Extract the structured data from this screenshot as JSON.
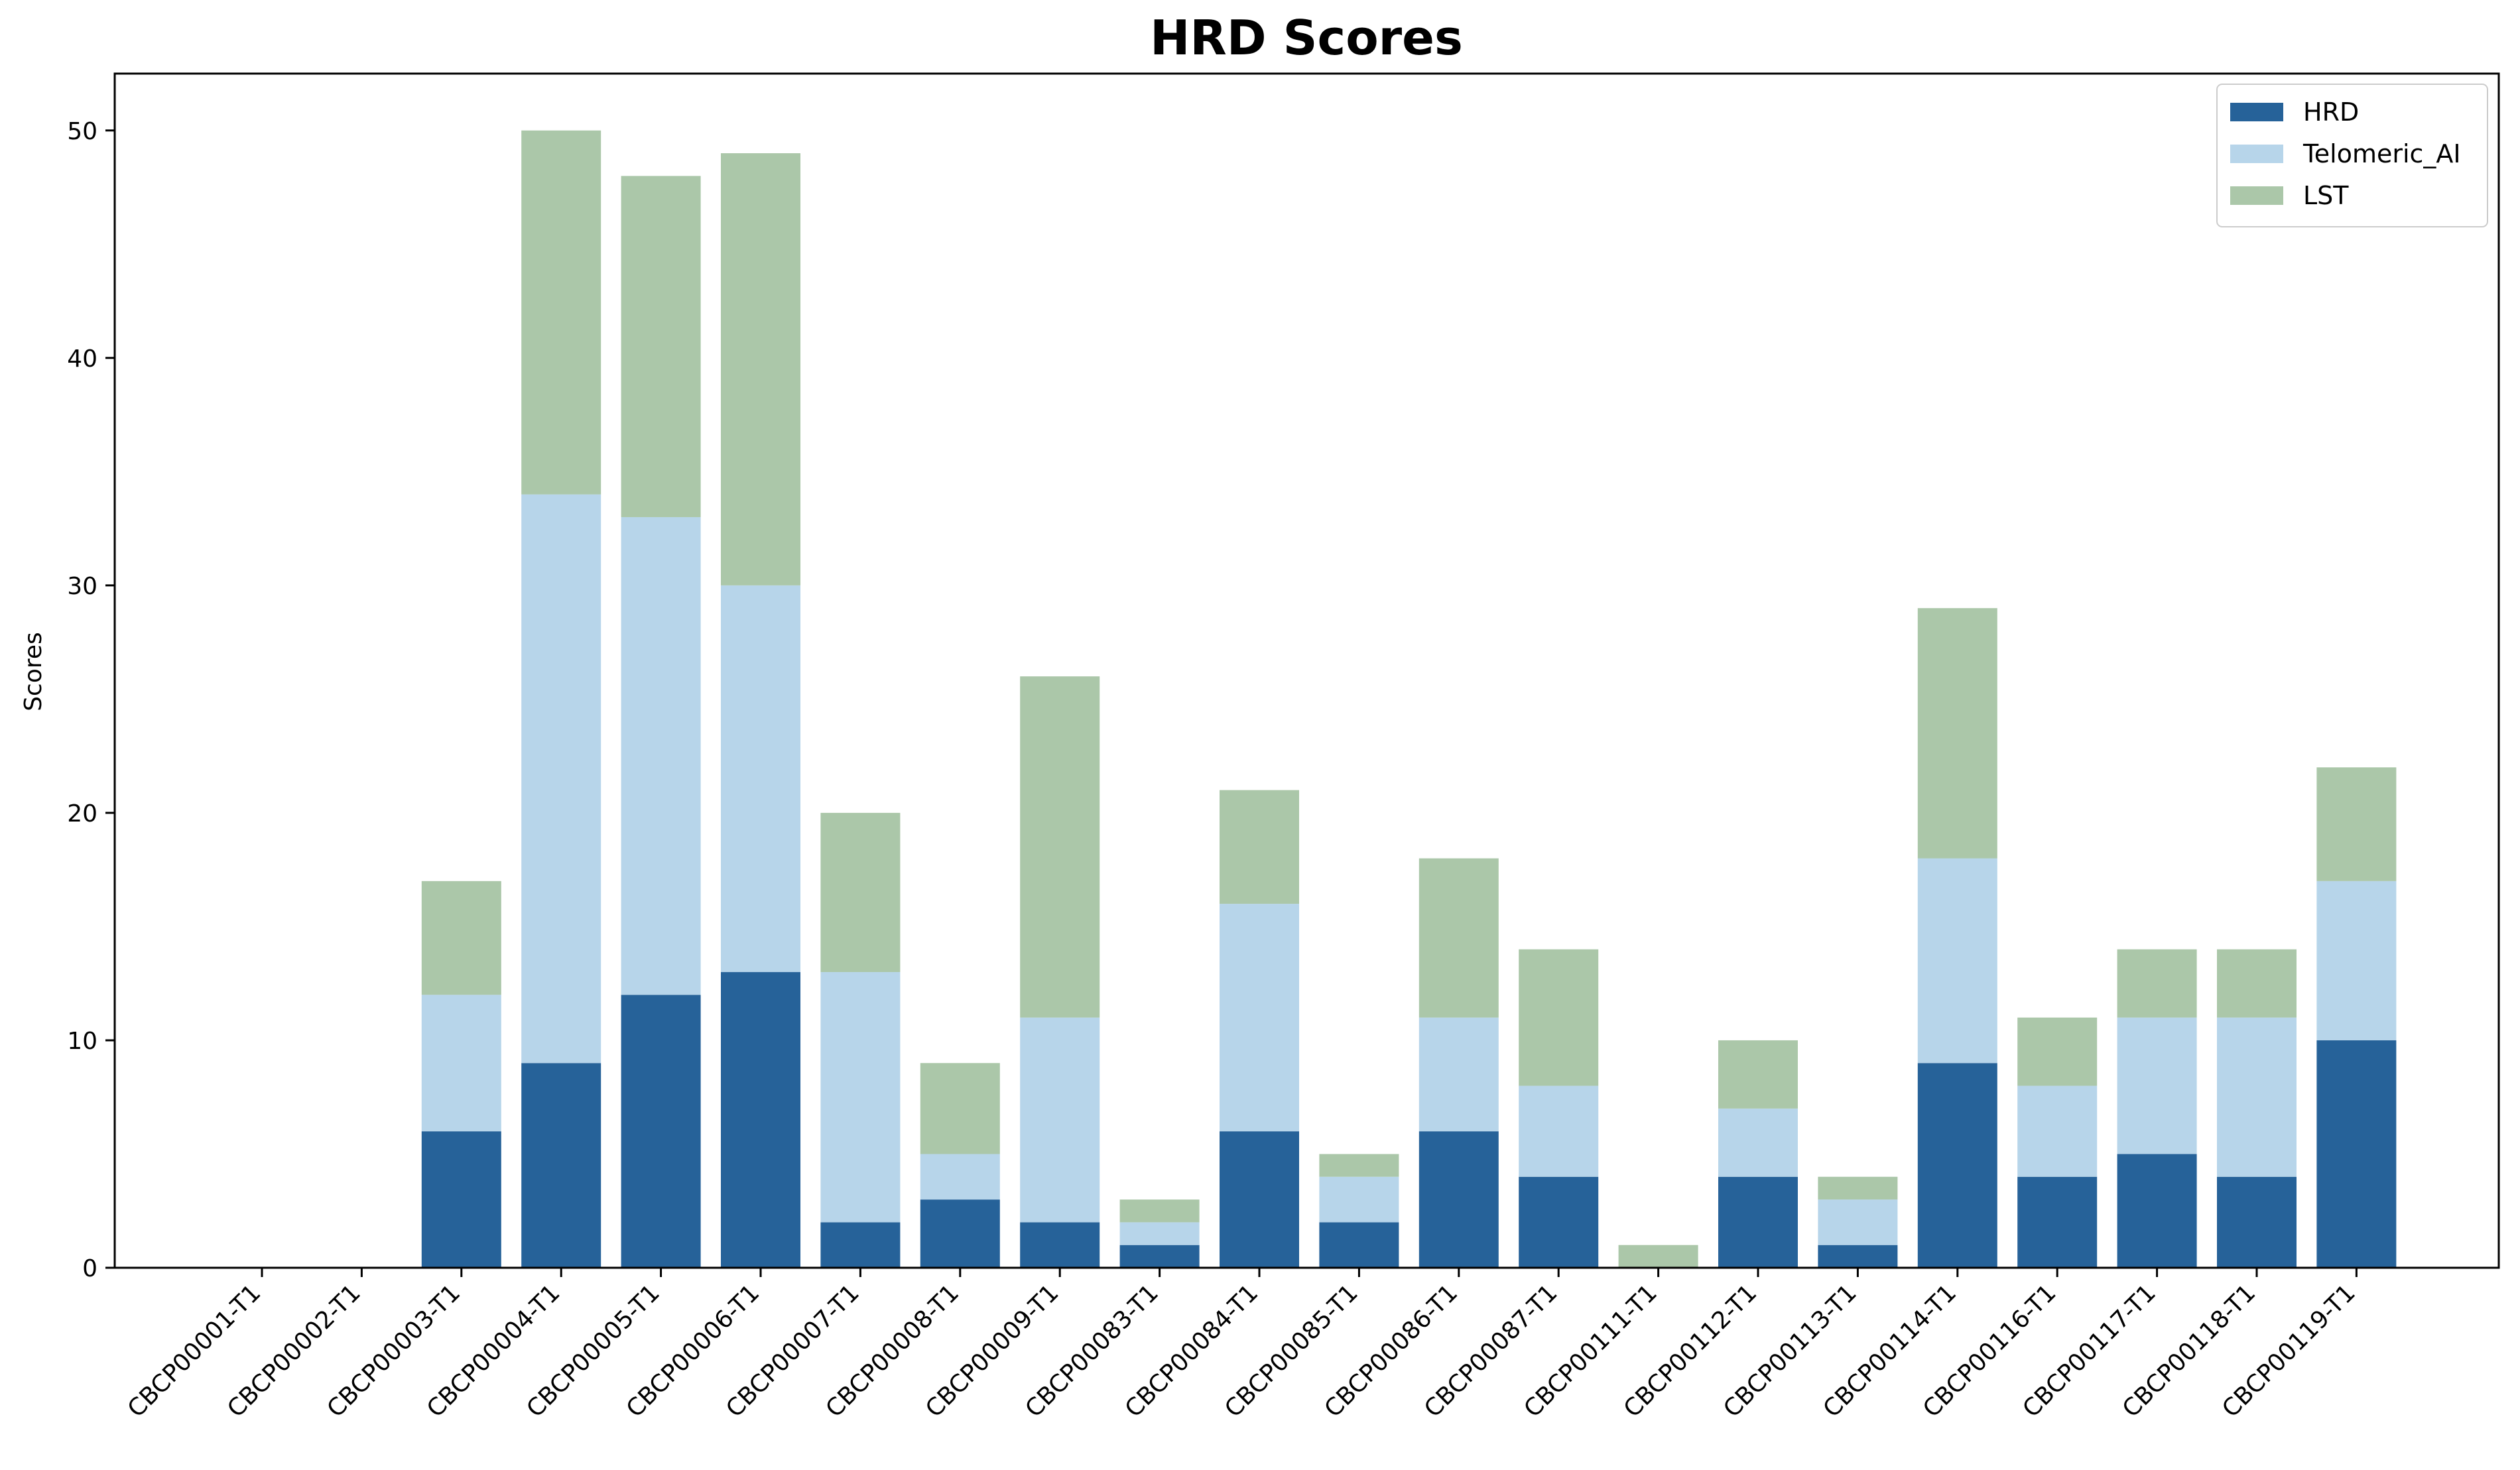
{
  "chart_data": {
    "type": "bar",
    "stacked": true,
    "title": "HRD Scores",
    "xlabel": "",
    "ylabel": "Scores",
    "ylim": [
      0,
      52.5
    ],
    "yticks": [
      0,
      10,
      20,
      30,
      40,
      50
    ],
    "grid": false,
    "legend_position": "top-right",
    "categories": [
      "CBCP00001-T1",
      "CBCP00002-T1",
      "CBCP00003-T1",
      "CBCP00004-T1",
      "CBCP00005-T1",
      "CBCP00006-T1",
      "CBCP00007-T1",
      "CBCP00008-T1",
      "CBCP00009-T1",
      "CBCP00083-T1",
      "CBCP00084-T1",
      "CBCP00085-T1",
      "CBCP00086-T1",
      "CBCP00087-T1",
      "CBCP00111-T1",
      "CBCP00112-T1",
      "CBCP00113-T1",
      "CBCP00114-T1",
      "CBCP00116-T1",
      "CBCP00117-T1",
      "CBCP00118-T1",
      "CBCP00119-T1"
    ],
    "series": [
      {
        "name": "HRD",
        "color": "#266299",
        "values": [
          0,
          0,
          6,
          9,
          12,
          13,
          2,
          3,
          2,
          1,
          6,
          2,
          6,
          4,
          0,
          4,
          1,
          9,
          4,
          5,
          4,
          10
        ]
      },
      {
        "name": "Telomeric_AI",
        "color": "#b7d5ea",
        "values": [
          0,
          0,
          6,
          25,
          21,
          17,
          11,
          2,
          9,
          1,
          10,
          2,
          5,
          4,
          0,
          3,
          2,
          9,
          4,
          6,
          7,
          7
        ]
      },
      {
        "name": "LST",
        "color": "#abc7a9",
        "values": [
          0,
          0,
          5,
          16,
          15,
          19,
          7,
          4,
          15,
          1,
          5,
          1,
          7,
          6,
          1,
          3,
          1,
          11,
          3,
          3,
          3,
          5
        ]
      }
    ]
  }
}
